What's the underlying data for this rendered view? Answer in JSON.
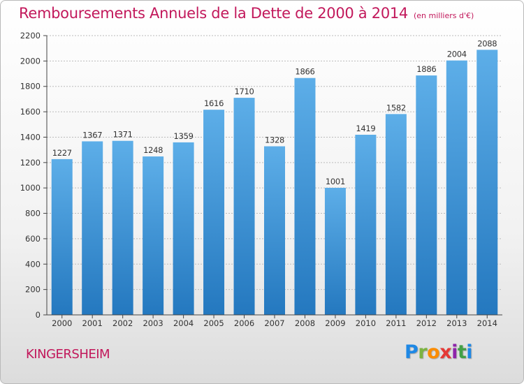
{
  "page": {
    "title": "Remboursements Annuels de la Dette de 2000 à 2014",
    "subtitle": "(en milliers d'€)",
    "commune": "KINGERSHEIM",
    "logo": "Proxiti"
  },
  "colors": {
    "title": "#c2185b",
    "bar_light": "#5daee8",
    "bar_dark": "#2478bf",
    "grid": "#bbbbbb",
    "axis": "#444444"
  },
  "chart_data": {
    "type": "bar",
    "title": "Remboursements Annuels de la Dette de 2000 à 2014",
    "xlabel": "",
    "ylabel": "",
    "categories": [
      "2000",
      "2001",
      "2002",
      "2003",
      "2004",
      "2005",
      "2006",
      "2007",
      "2008",
      "2009",
      "2010",
      "2011",
      "2012",
      "2013",
      "2014"
    ],
    "values": [
      1227,
      1367,
      1371,
      1248,
      1359,
      1616,
      1710,
      1328,
      1866,
      1001,
      1419,
      1582,
      1886,
      2004,
      2088
    ],
    "ylim": [
      0,
      2200
    ],
    "yticks": [
      0,
      200,
      400,
      600,
      800,
      1000,
      1200,
      1400,
      1600,
      1800,
      2000,
      2200
    ],
    "grid": true,
    "data_labels": true
  }
}
